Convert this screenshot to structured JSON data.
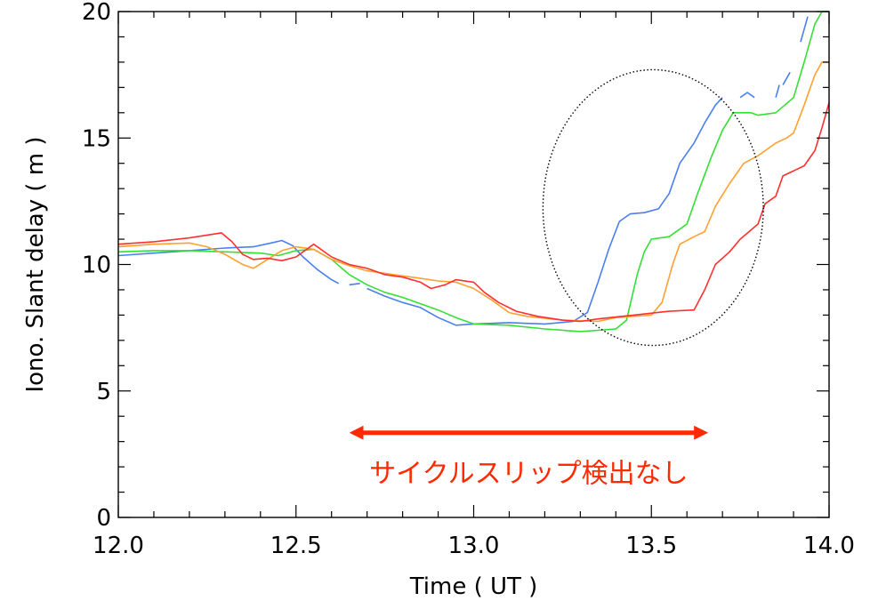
{
  "chart_data": {
    "type": "line",
    "title": "",
    "xlabel": "Time ( UT )",
    "ylabel": "Iono. Slant delay ( m )",
    "xlim": [
      12.0,
      14.0
    ],
    "ylim": [
      0,
      20
    ],
    "xticks": [
      "12.0",
      "12.5",
      "13.0",
      "13.5",
      "14.0"
    ],
    "yticks": [
      "0",
      "5",
      "10",
      "15",
      "20"
    ],
    "grid": false,
    "legend": "none",
    "series": [
      {
        "color": "#4a7ff0",
        "segments": [
          [
            [
              12.0,
              10.35
            ],
            [
              12.1,
              10.45
            ],
            [
              12.2,
              10.55
            ],
            [
              12.3,
              10.65
            ],
            [
              12.38,
              10.7
            ],
            [
              12.43,
              10.85
            ],
            [
              12.46,
              10.95
            ],
            [
              12.49,
              10.75
            ],
            [
              12.52,
              10.3
            ],
            [
              12.56,
              9.8
            ],
            [
              12.6,
              9.4
            ],
            [
              12.62,
              9.25
            ]
          ],
          [
            [
              12.65,
              9.2
            ],
            [
              12.68,
              9.25
            ]
          ],
          [
            [
              12.7,
              9.05
            ],
            [
              12.75,
              8.75
            ],
            [
              12.8,
              8.5
            ],
            [
              12.85,
              8.3
            ],
            [
              12.9,
              7.9
            ],
            [
              12.95,
              7.6
            ],
            [
              13.0,
              7.65
            ],
            [
              13.1,
              7.7
            ],
            [
              13.2,
              7.65
            ],
            [
              13.28,
              7.75
            ],
            [
              13.32,
              8.1
            ],
            [
              13.35,
              9.3
            ],
            [
              13.38,
              10.6
            ],
            [
              13.41,
              11.7
            ],
            [
              13.44,
              12.0
            ],
            [
              13.48,
              12.05
            ],
            [
              13.52,
              12.2
            ],
            [
              13.55,
              12.8
            ],
            [
              13.58,
              14.0
            ],
            [
              13.62,
              14.8
            ],
            [
              13.65,
              15.6
            ],
            [
              13.68,
              16.3
            ],
            [
              13.7,
              16.6
            ]
          ],
          [
            [
              13.75,
              16.6
            ],
            [
              13.77,
              16.8
            ],
            [
              13.79,
              16.6
            ]
          ],
          [
            [
              13.85,
              16.6
            ],
            [
              13.86,
              17.1
            ]
          ],
          [
            [
              13.87,
              17.1
            ],
            [
              13.89,
              17.6
            ]
          ],
          [
            [
              13.92,
              18.8
            ],
            [
              13.94,
              19.8
            ]
          ]
        ]
      },
      {
        "color": "#33e033",
        "segments": [
          [
            [
              12.0,
              10.5
            ],
            [
              12.1,
              10.55
            ],
            [
              12.2,
              10.55
            ],
            [
              12.3,
              10.5
            ],
            [
              12.4,
              10.45
            ],
            [
              12.45,
              10.35
            ],
            [
              12.5,
              10.55
            ],
            [
              12.55,
              10.6
            ],
            [
              12.6,
              10.2
            ],
            [
              12.65,
              9.6
            ],
            [
              12.7,
              9.2
            ],
            [
              12.75,
              8.9
            ],
            [
              12.8,
              8.7
            ],
            [
              12.9,
              8.2
            ],
            [
              12.95,
              7.9
            ],
            [
              13.0,
              7.65
            ],
            [
              13.1,
              7.6
            ],
            [
              13.2,
              7.45
            ],
            [
              13.3,
              7.35
            ],
            [
              13.35,
              7.4
            ],
            [
              13.4,
              7.45
            ],
            [
              13.43,
              7.8
            ],
            [
              13.46,
              9.6
            ],
            [
              13.48,
              10.5
            ],
            [
              13.5,
              11.0
            ],
            [
              13.55,
              11.1
            ],
            [
              13.6,
              11.6
            ],
            [
              13.63,
              12.8
            ],
            [
              13.67,
              14.3
            ],
            [
              13.7,
              15.3
            ],
            [
              13.73,
              16.0
            ],
            [
              13.78,
              16.0
            ],
            [
              13.8,
              15.9
            ],
            [
              13.85,
              16.0
            ],
            [
              13.9,
              16.6
            ],
            [
              13.93,
              18.0
            ],
            [
              13.96,
              19.5
            ],
            [
              13.98,
              20.0
            ],
            [
              14.0,
              20.0
            ]
          ]
        ]
      },
      {
        "color": "#ffa030",
        "segments": [
          [
            [
              12.0,
              10.7
            ],
            [
              12.1,
              10.8
            ],
            [
              12.2,
              10.85
            ],
            [
              12.25,
              10.7
            ],
            [
              12.3,
              10.4
            ],
            [
              12.35,
              10.0
            ],
            [
              12.38,
              9.85
            ],
            [
              12.42,
              10.2
            ],
            [
              12.46,
              10.55
            ],
            [
              12.5,
              10.7
            ],
            [
              12.55,
              10.6
            ],
            [
              12.6,
              10.2
            ],
            [
              12.65,
              9.95
            ],
            [
              12.7,
              9.75
            ],
            [
              12.8,
              9.55
            ],
            [
              12.85,
              9.45
            ],
            [
              12.9,
              9.35
            ],
            [
              12.95,
              9.3
            ],
            [
              13.0,
              9.05
            ],
            [
              13.05,
              8.6
            ],
            [
              13.1,
              8.1
            ],
            [
              13.15,
              7.95
            ],
            [
              13.25,
              7.8
            ],
            [
              13.35,
              7.75
            ],
            [
              13.4,
              7.9
            ],
            [
              13.5,
              8.0
            ],
            [
              13.53,
              8.5
            ],
            [
              13.56,
              10.0
            ],
            [
              13.58,
              10.8
            ],
            [
              13.62,
              11.1
            ],
            [
              13.65,
              11.3
            ],
            [
              13.68,
              12.3
            ],
            [
              13.72,
              13.2
            ],
            [
              13.76,
              14.0
            ],
            [
              13.8,
              14.3
            ],
            [
              13.83,
              14.6
            ],
            [
              13.85,
              14.8
            ],
            [
              13.88,
              15.0
            ],
            [
              13.9,
              15.2
            ],
            [
              13.93,
              16.3
            ],
            [
              13.96,
              17.5
            ],
            [
              13.98,
              18.0
            ],
            [
              14.0,
              18.0
            ]
          ]
        ]
      },
      {
        "color": "#ff3030",
        "segments": [
          [
            [
              12.0,
              10.8
            ],
            [
              12.1,
              10.9
            ],
            [
              12.2,
              11.05
            ],
            [
              12.29,
              11.25
            ],
            [
              12.32,
              10.9
            ],
            [
              12.35,
              10.4
            ],
            [
              12.38,
              10.2
            ],
            [
              12.42,
              10.25
            ],
            [
              12.46,
              10.15
            ],
            [
              12.5,
              10.3
            ],
            [
              12.55,
              10.8
            ],
            [
              12.6,
              10.3
            ],
            [
              12.65,
              10.0
            ],
            [
              12.7,
              9.85
            ],
            [
              12.75,
              9.6
            ],
            [
              12.8,
              9.5
            ],
            [
              12.85,
              9.3
            ],
            [
              12.88,
              9.05
            ],
            [
              12.92,
              9.2
            ],
            [
              12.95,
              9.4
            ],
            [
              13.0,
              9.3
            ],
            [
              13.03,
              8.9
            ],
            [
              13.07,
              8.5
            ],
            [
              13.12,
              8.15
            ],
            [
              13.18,
              7.95
            ],
            [
              13.25,
              7.8
            ],
            [
              13.3,
              7.75
            ],
            [
              13.35,
              7.85
            ],
            [
              13.45,
              8.0
            ],
            [
              13.55,
              8.15
            ],
            [
              13.62,
              8.2
            ],
            [
              13.65,
              9.0
            ],
            [
              13.68,
              10.0
            ],
            [
              13.72,
              10.5
            ],
            [
              13.75,
              11.0
            ],
            [
              13.8,
              11.6
            ],
            [
              13.82,
              12.4
            ],
            [
              13.85,
              12.7
            ],
            [
              13.87,
              13.5
            ],
            [
              13.9,
              13.7
            ],
            [
              13.93,
              13.9
            ],
            [
              13.96,
              14.5
            ],
            [
              13.98,
              15.4
            ],
            [
              14.0,
              16.4
            ]
          ]
        ]
      }
    ],
    "annotations": {
      "text": "サイクルスリップ検出なし",
      "text_color": "#ff2a00",
      "arrow_x_range": [
        12.67,
        13.64
      ],
      "arrow_y": 3.35,
      "ellipse_center": [
        13.505,
        12.25
      ],
      "ellipse_radius_x": 0.31,
      "ellipse_radius_y": 5.45
    }
  }
}
